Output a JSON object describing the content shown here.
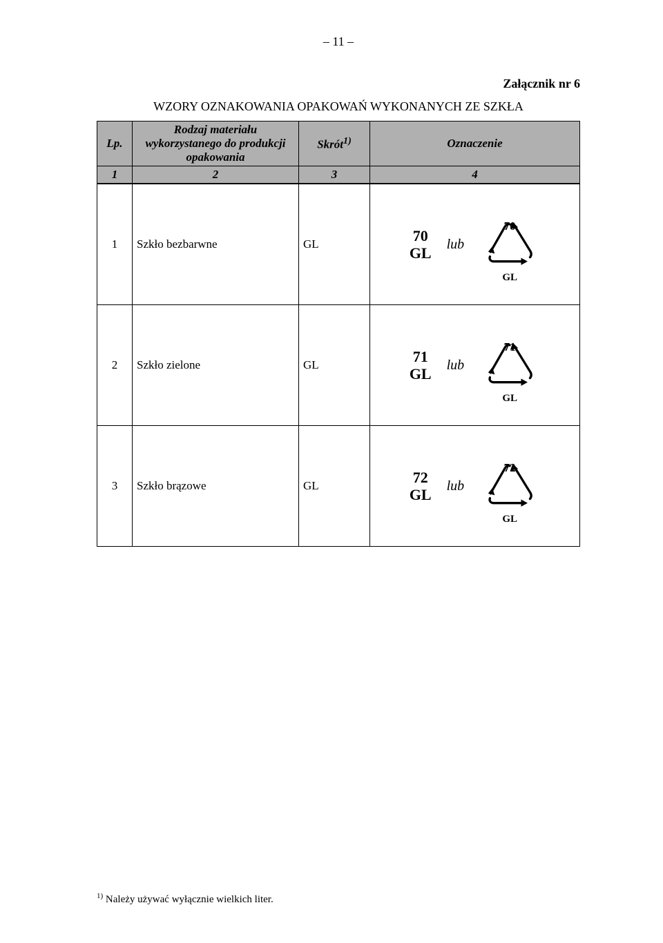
{
  "page_number": "– 11 –",
  "attachment": "Załącznik nr 6",
  "title": "WZORY OZNAKOWANIA OPAKOWAŃ WYKONANYCH ZE SZKŁA",
  "header": {
    "lp": "Lp.",
    "material": "Rodzaj materiału wykorzystanego do produkcji opakowania",
    "abbr": "Skrót",
    "abbr_sup": "1)",
    "mark": "Oznaczenie",
    "n1": "1",
    "n2": "2",
    "n3": "3",
    "n4": "4"
  },
  "rows": [
    {
      "lp": "1",
      "name": "Szkło bezbarwne",
      "abbr": "GL",
      "num": "70",
      "code": "GL",
      "lub": "lub"
    },
    {
      "lp": "2",
      "name": "Szkło zielone",
      "abbr": "GL",
      "num": "71",
      "code": "GL",
      "lub": "lub"
    },
    {
      "lp": "3",
      "name": "Szkło brązowe",
      "abbr": "GL",
      "num": "72",
      "code": "GL",
      "lub": "lub"
    }
  ],
  "footnote_sup": "1)",
  "footnote": " Należy używać wyłącznie wielkich liter.",
  "triangle_svg": {
    "width": 88,
    "height": 78,
    "stroke": "#000",
    "stroke_width": 3.2
  }
}
